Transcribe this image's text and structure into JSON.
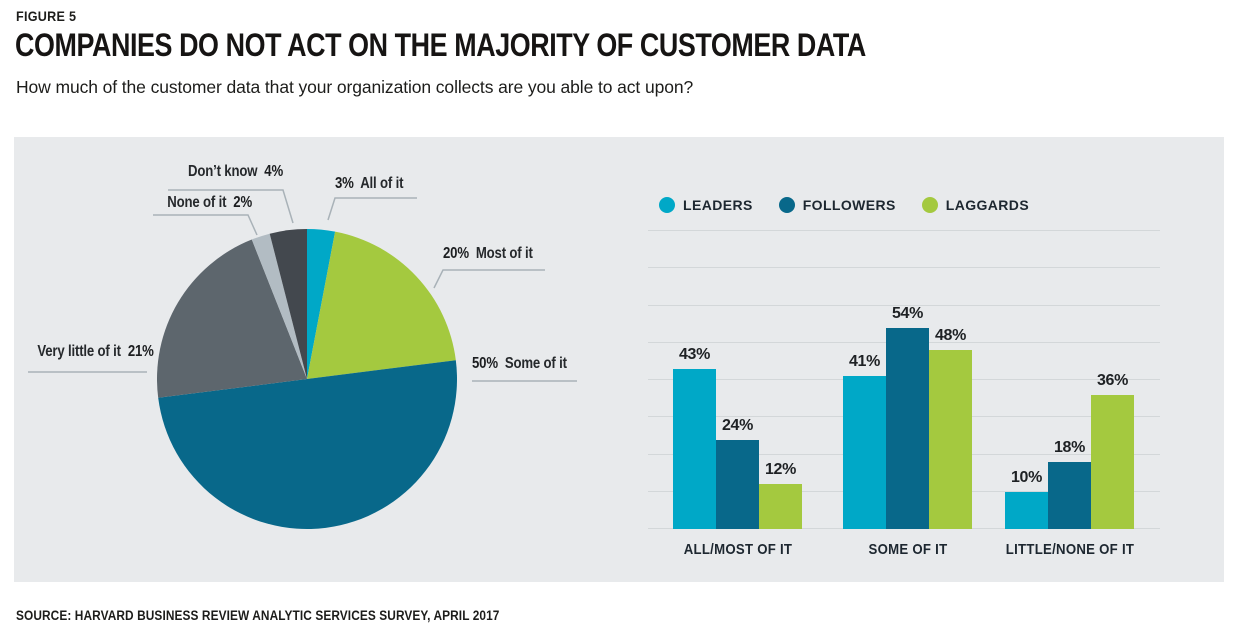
{
  "figure": {
    "eyebrow": "FIGURE 5",
    "title": "COMPANIES DO NOT ACT ON THE MAJORITY OF CUSTOMER DATA",
    "subtitle": "How much of the customer data that your organization collects are you able to act upon?",
    "source": "SOURCE: HARVARD BUSINESS REVIEW ANALYTIC SERVICES SURVEY, APRIL 2017"
  },
  "colors": {
    "panel_bg": "#e8eaec",
    "leaders_cyan": "#00a8c7",
    "followers_teal": "#08688a",
    "laggards_green": "#a4c93f",
    "gray": "#5d666d",
    "light_gray": "#b2bcc3",
    "dark_gray": "#43484e",
    "gridline": "#d3d7d9",
    "leader_line": "#a9b2b8"
  },
  "chart_data": [
    {
      "type": "pie",
      "start_angle_deg": 0,
      "direction": "clockwise-from-top",
      "slices": [
        {
          "name": "All of it",
          "pct": "3%",
          "value": 3,
          "color": "#00a8c7",
          "label_order": "pct-first"
        },
        {
          "name": "Most of it",
          "pct": "20%",
          "value": 20,
          "color": "#a4c93f",
          "label_order": "pct-first"
        },
        {
          "name": "Some of it",
          "pct": "50%",
          "value": 50,
          "color": "#08688a",
          "label_order": "pct-first"
        },
        {
          "name": "Very little of it",
          "pct": "21%",
          "value": 21,
          "color": "#5d666d",
          "label_order": "name-first"
        },
        {
          "name": "None of it",
          "pct": "2%",
          "value": 2,
          "color": "#b2bcc3",
          "label_order": "name-first"
        },
        {
          "name": "Don’t know",
          "pct": "4%",
          "value": 4,
          "color": "#43484e",
          "label_order": "name-first"
        }
      ]
    },
    {
      "type": "bar",
      "categories": [
        "ALL/MOST OF IT",
        "SOME OF IT",
        "LITTLE/NONE OF IT"
      ],
      "series": [
        {
          "name": "LEADERS",
          "color": "#00a8c7",
          "values": [
            43,
            41,
            10
          ]
        },
        {
          "name": "FOLLOWERS",
          "color": "#08688a",
          "values": [
            24,
            54,
            18
          ]
        },
        {
          "name": "LAGGARDS",
          "color": "#a4c93f",
          "values": [
            12,
            48,
            36
          ]
        }
      ],
      "value_label_suffix": "%",
      "ylim": [
        0,
        80
      ],
      "gridline_step": 10,
      "grid": true,
      "legend_position": "top"
    }
  ]
}
